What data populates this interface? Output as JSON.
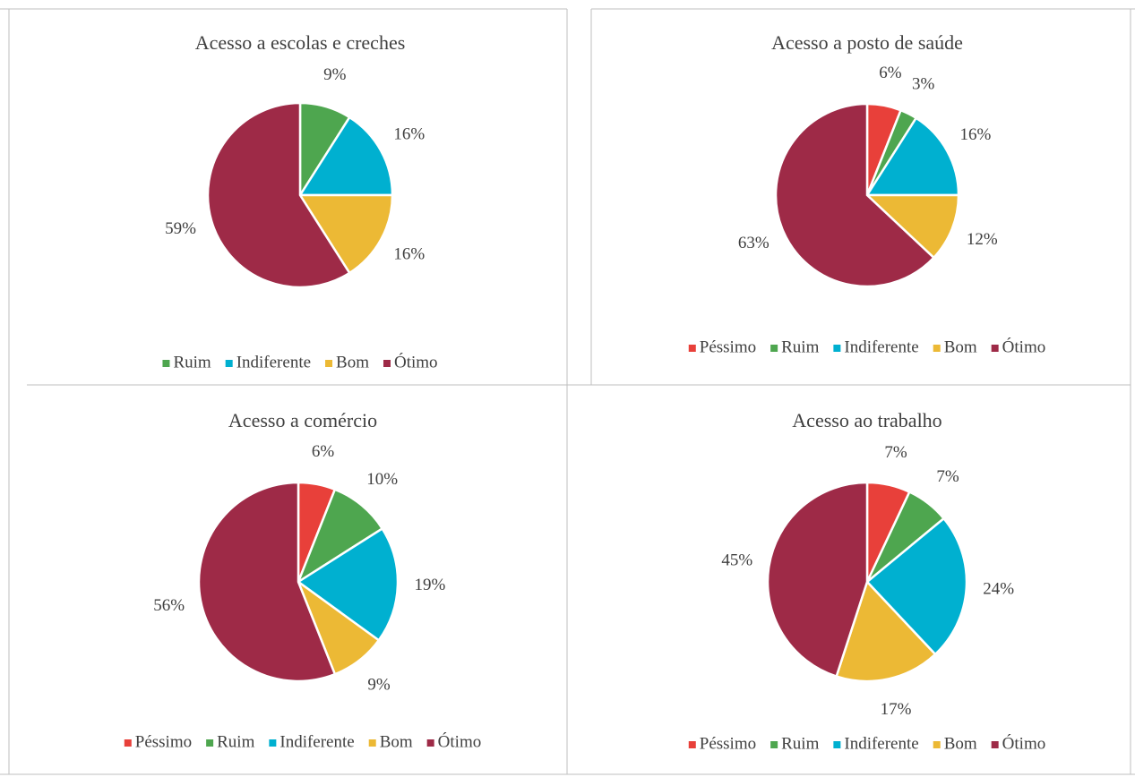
{
  "chart_data": [
    {
      "type": "pie",
      "title": "Acesso a escolas e creches",
      "categories": [
        "Ruim",
        "Indiferente",
        "Bom",
        "Ótimo"
      ],
      "values": [
        9,
        16,
        16,
        59
      ],
      "value_labels": [
        "9%",
        "16%",
        "16%",
        "59%"
      ],
      "colors": [
        "#4ea64f",
        "#00b0d0",
        "#ecb935",
        "#9e2a47"
      ]
    },
    {
      "type": "pie",
      "title": "Acesso a posto de saúde",
      "categories": [
        "Péssimo",
        "Ruim",
        "Indiferente",
        "Bom",
        "Ótimo"
      ],
      "values": [
        6,
        3,
        16,
        12,
        63
      ],
      "value_labels": [
        "6%",
        "3%",
        "16%",
        "12%",
        "63%"
      ],
      "colors": [
        "#e8403a",
        "#4ea64f",
        "#00b0d0",
        "#ecb935",
        "#9e2a47"
      ]
    },
    {
      "type": "pie",
      "title": "Acesso a comércio",
      "categories": [
        "Péssimo",
        "Ruim",
        "Indiferente",
        "Bom",
        "Ótimo"
      ],
      "values": [
        6,
        10,
        19,
        9,
        56
      ],
      "value_labels": [
        "6%",
        "10%",
        "19%",
        "9%",
        "56%"
      ],
      "colors": [
        "#e8403a",
        "#4ea64f",
        "#00b0d0",
        "#ecb935",
        "#9e2a47"
      ]
    },
    {
      "type": "pie",
      "title": "Acesso ao trabalho",
      "categories": [
        "Péssimo",
        "Ruim",
        "Indiferente",
        "Bom",
        "Ótimo"
      ],
      "values": [
        7,
        7,
        24,
        17,
        45
      ],
      "value_labels": [
        "7%",
        "7%",
        "24%",
        "17%",
        "45%"
      ],
      "colors": [
        "#e8403a",
        "#4ea64f",
        "#00b0d0",
        "#ecb935",
        "#9e2a47"
      ]
    }
  ]
}
